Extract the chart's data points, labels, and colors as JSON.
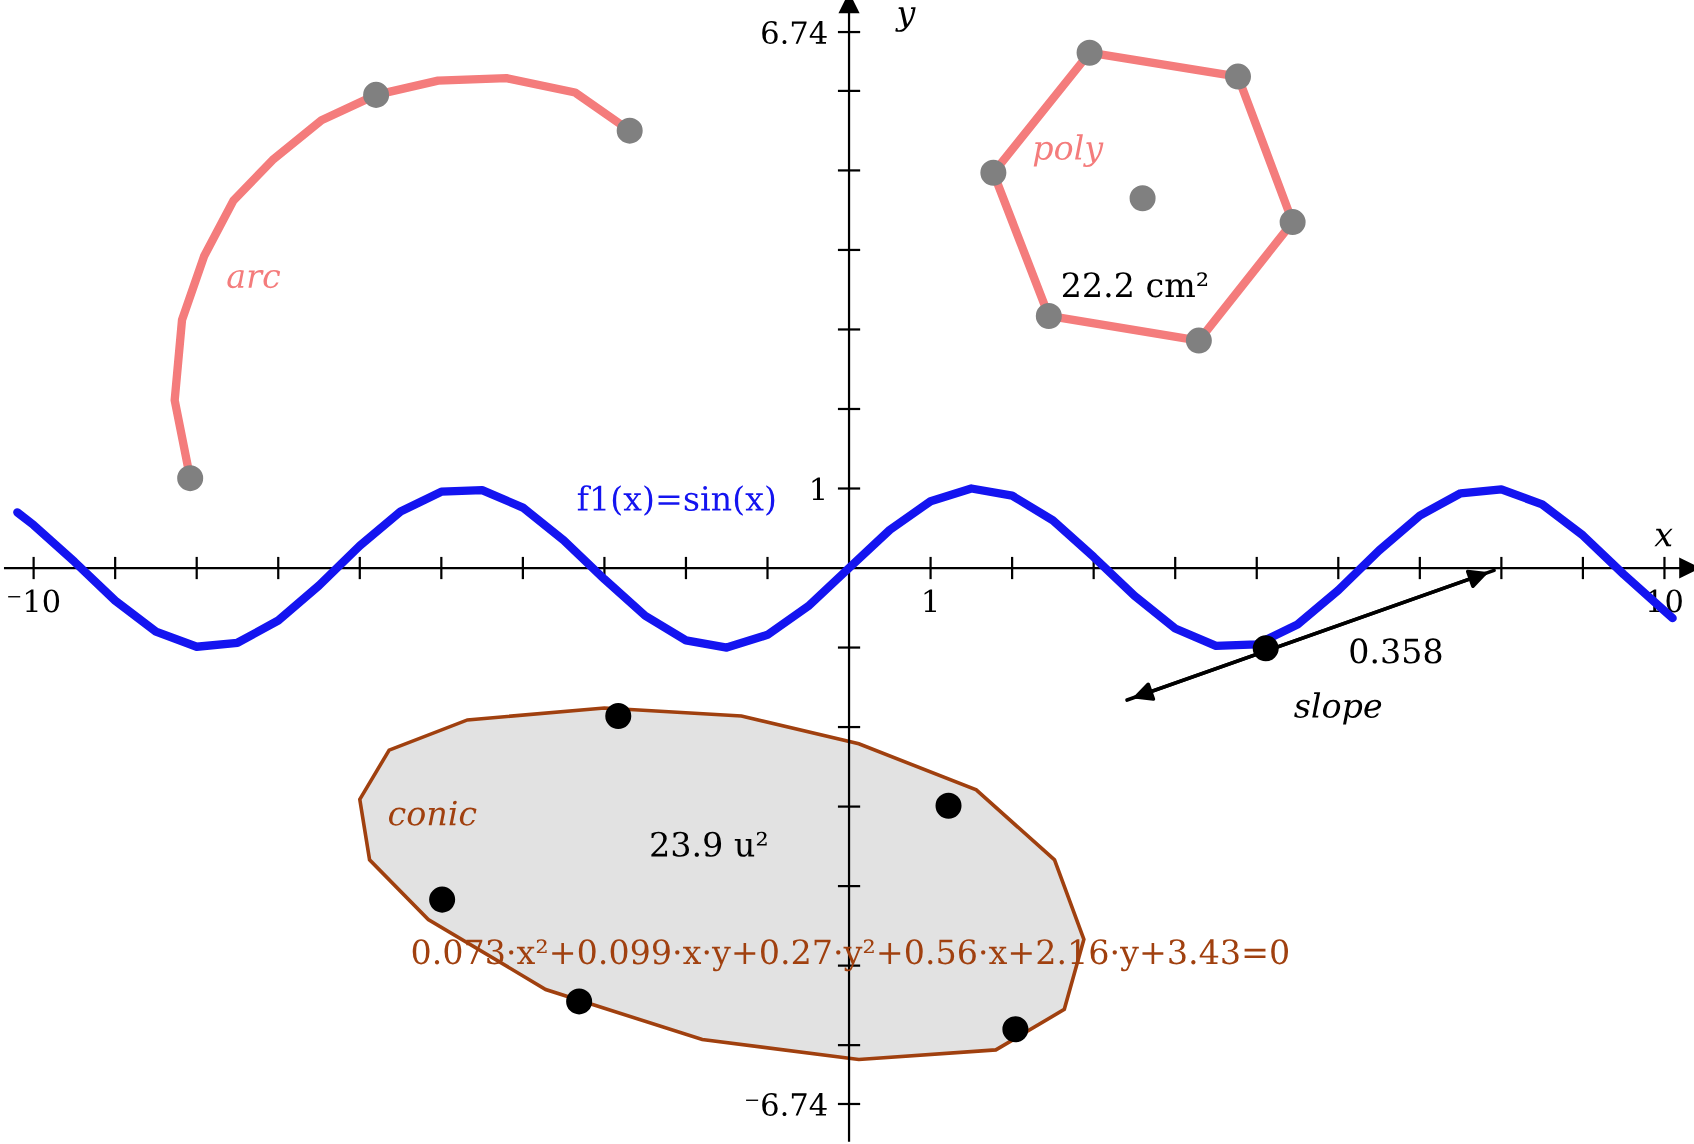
{
  "chart_data": {
    "type": "line",
    "xlabel": "x",
    "ylabel": "y",
    "xlim": [
      -10.35,
      10.3
    ],
    "ylim": [
      -7.2,
      7.1
    ],
    "xticks": [
      {
        "value": -10,
        "label": "⁻10"
      },
      {
        "value": -9,
        "label": null
      },
      {
        "value": -8,
        "label": null
      },
      {
        "value": -7,
        "label": null
      },
      {
        "value": -6,
        "label": null
      },
      {
        "value": -5,
        "label": null
      },
      {
        "value": -4,
        "label": null
      },
      {
        "value": -3,
        "label": null
      },
      {
        "value": -2,
        "label": null
      },
      {
        "value": -1,
        "label": null
      },
      1,
      {
        "value": 2,
        "label": null
      },
      {
        "value": 3,
        "label": null
      },
      {
        "value": 4,
        "label": null
      },
      {
        "value": 5,
        "label": null
      },
      {
        "value": 6,
        "label": null
      },
      {
        "value": 7,
        "label": null
      },
      {
        "value": 8,
        "label": null
      },
      {
        "value": 9,
        "label": null
      },
      10
    ],
    "yticks": [
      {
        "value": -6.74,
        "label": "⁻6.74"
      },
      {
        "value": -6,
        "label": null
      },
      {
        "value": -5,
        "label": null
      },
      {
        "value": -4,
        "label": null
      },
      {
        "value": -3,
        "label": null
      },
      {
        "value": -2,
        "label": null
      },
      {
        "value": -1,
        "label": null
      },
      1,
      {
        "value": 2,
        "label": null
      },
      {
        "value": 3,
        "label": null
      },
      {
        "value": 4,
        "label": null
      },
      {
        "value": 5,
        "label": null
      },
      {
        "value": 6,
        "label": null
      },
      6.74
    ],
    "grid": false,
    "legend": false,
    "series": [
      {
        "name": "f1(x)=sin(x)",
        "color": "#1414f0",
        "x": [
          -10.2,
          -10,
          -9.5,
          -9,
          -8.5,
          -8,
          -7.5,
          -7,
          -6.5,
          -6,
          -5.5,
          -5,
          -4.5,
          -4,
          -3.5,
          -3,
          -2.5,
          -2,
          -1.5,
          -1,
          -0.5,
          0,
          0.5,
          1,
          1.5,
          2,
          2.5,
          3,
          3.5,
          4,
          4.5,
          5,
          5.5,
          6,
          6.5,
          7,
          7.5,
          8,
          8.5,
          9,
          9.5,
          10,
          10.1
        ],
        "values": [
          0.7,
          0.54,
          0.08,
          -0.41,
          -0.8,
          -0.99,
          -0.94,
          -0.66,
          -0.22,
          0.28,
          0.71,
          0.96,
          0.98,
          0.76,
          0.35,
          -0.14,
          -0.6,
          -0.91,
          -1.0,
          -0.84,
          -0.48,
          0,
          0.48,
          0.84,
          1.0,
          0.91,
          0.6,
          0.14,
          -0.35,
          -0.76,
          -0.98,
          -0.96,
          -0.71,
          -0.28,
          0.22,
          0.66,
          0.94,
          0.99,
          0.8,
          0.41,
          -0.08,
          -0.54,
          -0.63
        ]
      },
      {
        "name": "arc",
        "color": "#f47c7c",
        "x": [
          -8.08,
          -8.27,
          -8.18,
          -7.91,
          -7.55,
          -7.07,
          -6.47,
          -5.8,
          -5.04,
          -4.2,
          -3.36,
          -2.69
        ],
        "values": [
          1.13,
          2.11,
          3.12,
          3.92,
          4.62,
          5.13,
          5.63,
          5.95,
          6.13,
          6.16,
          5.98,
          5.5
        ]
      },
      {
        "type": "scatter",
        "color": "#808080",
        "x": [
          -8.08,
          -5.8,
          -2.69
        ],
        "values": [
          1.13,
          5.95,
          5.5
        ]
      },
      {
        "name": "poly",
        "type": "line",
        "color": "#f47c7c",
        "x": [
          1.77,
          2.95,
          4.77,
          5.44
        ],
        "values": [
          4.97,
          6.48,
          6.18,
          4.35
        ]
      },
      {
        "type": "line",
        "color": "#f47c7c",
        "x": [
          1.77,
          2.45,
          4.29,
          5.44
        ],
        "values": [
          4.97,
          3.17,
          2.86,
          4.35
        ]
      },
      {
        "type": "scatter",
        "color": "#808080",
        "x": [
          2.95,
          4.77,
          5.44,
          4.29,
          2.45,
          1.77,
          3.6
        ],
        "values": [
          6.48,
          6.18,
          4.35,
          2.86,
          3.17,
          4.97,
          4.65
        ]
      },
      {
        "name": "conic",
        "type": "area",
        "color": "#a0400f",
        "x": [
          -6.0,
          -5.64,
          -4.68,
          -3.0,
          -1.32,
          0.12,
          1.56,
          2.52,
          2.88,
          2.64,
          1.8,
          0.12,
          -1.8,
          -3.72,
          -5.16,
          -5.88,
          -6.0
        ],
        "values": [
          -2.91,
          -2.29,
          -1.91,
          -1.76,
          -1.86,
          -2.21,
          -2.79,
          -3.67,
          -4.67,
          -5.55,
          -6.06,
          -6.18,
          -5.93,
          -5.3,
          -4.42,
          -3.67,
          -2.91
        ]
      },
      {
        "type": "scatter",
        "color": "#000000",
        "x": [
          -2.83,
          1.22,
          2.04,
          -3.31,
          -4.99
        ],
        "values": [
          -1.86,
          -2.99,
          -5.8,
          -5.45,
          -4.17
        ]
      },
      {
        "name": "slope",
        "color": "#000000",
        "x": [
          3.41,
          7.91
        ],
        "values": [
          -1.66,
          -0.03
        ]
      },
      {
        "type": "scatter",
        "color": "#000000",
        "x": [
          5.11
        ],
        "values": [
          -1.01
        ]
      }
    ],
    "annotations": [
      "22.2 cm²",
      "23.9 u²",
      "0.358",
      "0.073·x²+0.099·x·y+0.27·y²+0.56·x+2.16·y+3.43=0"
    ]
  }
}
